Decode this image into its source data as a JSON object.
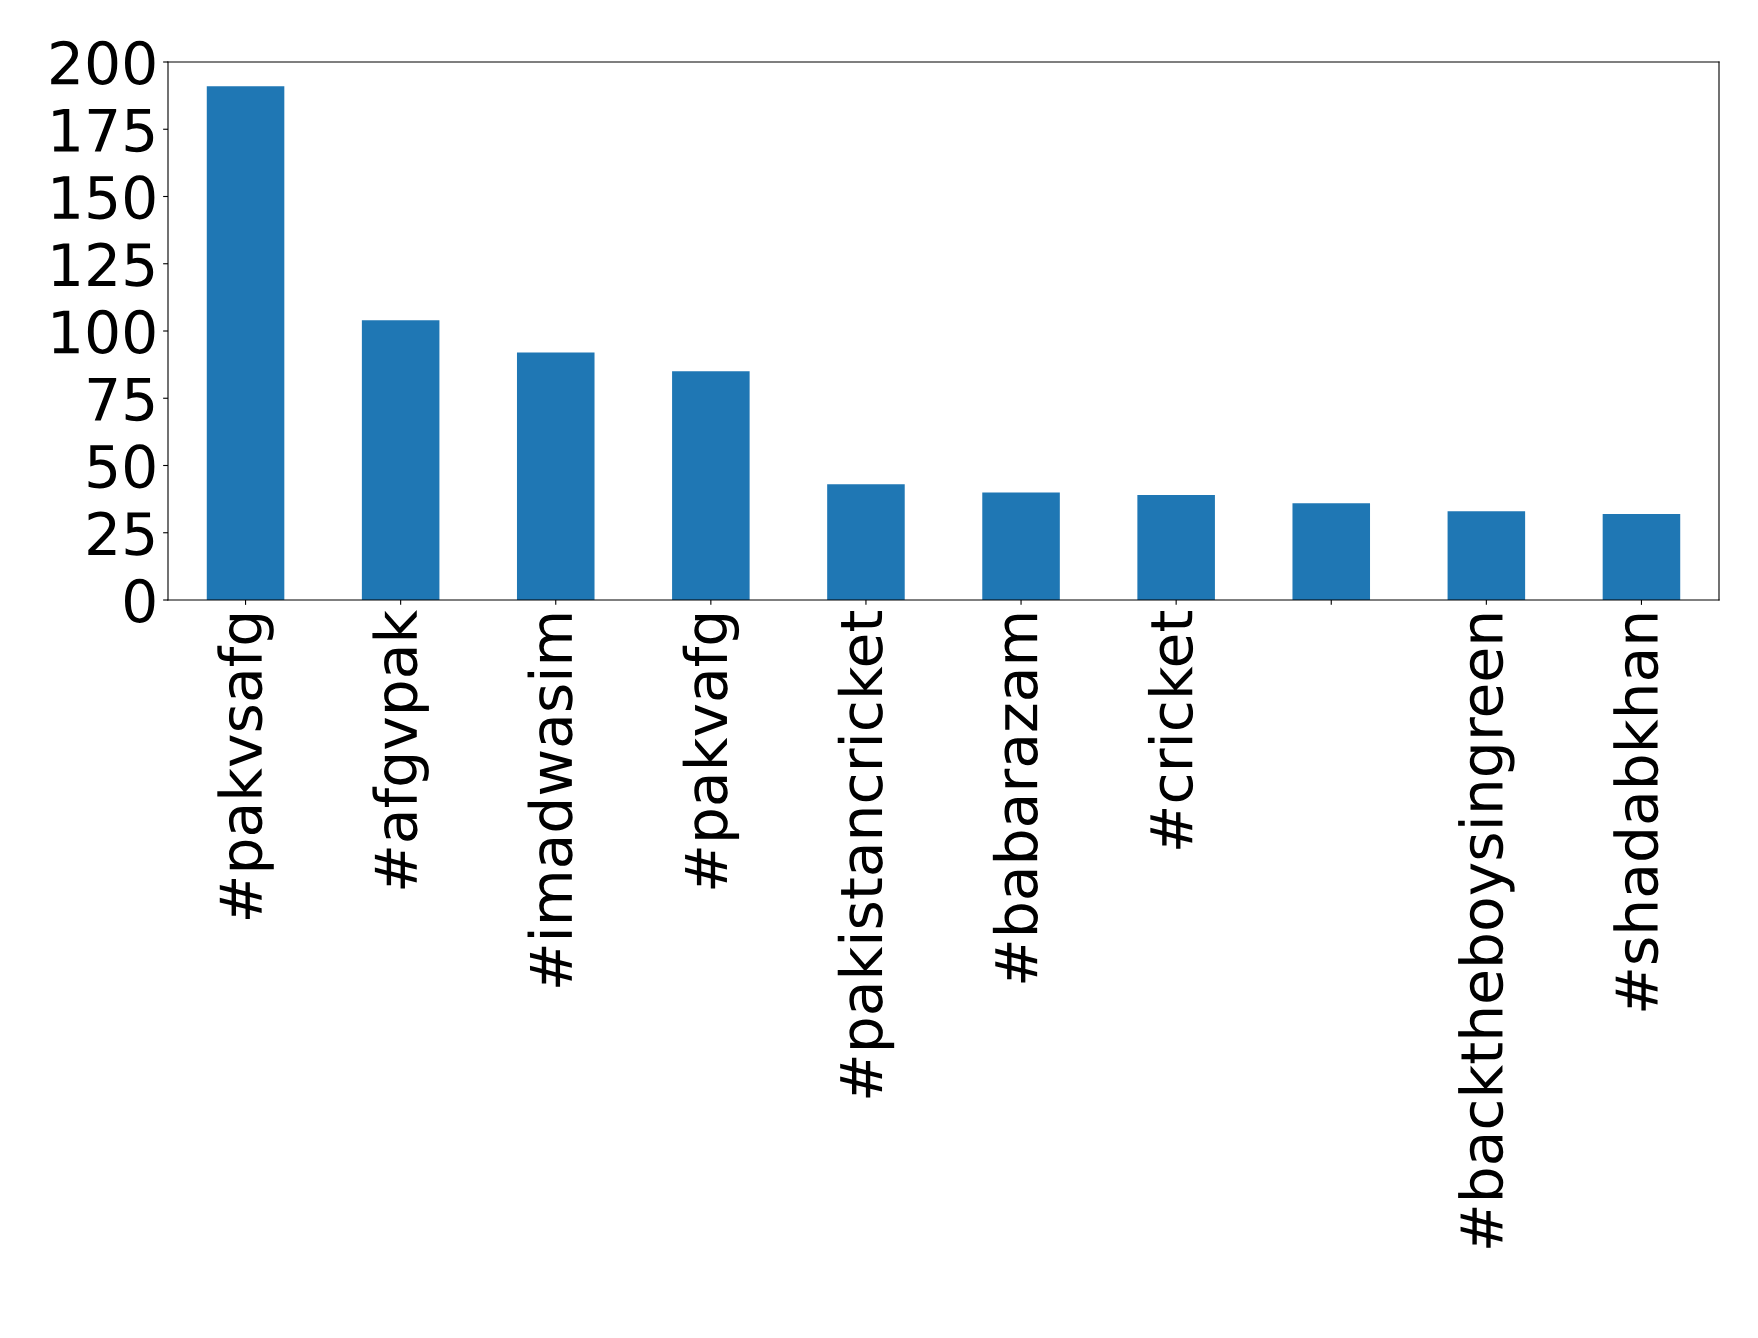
{
  "chart_data": {
    "type": "bar",
    "categories": [
      "#pakvsafg",
      "#afgvpak",
      "#imadwasim",
      "#pakvafg",
      "#pakistancricket",
      "#babarazam",
      "#cricket",
      null,
      "#backtheboysingreen",
      "#shadabkhan"
    ],
    "values": [
      191,
      104,
      92,
      85,
      43,
      40,
      39,
      36,
      33,
      32
    ],
    "color": "#1f77b4",
    "ylim": [
      0,
      200
    ],
    "yticks": [
      0,
      25,
      50,
      75,
      100,
      125,
      150,
      175,
      200
    ],
    "grid": false,
    "legend": false
  }
}
